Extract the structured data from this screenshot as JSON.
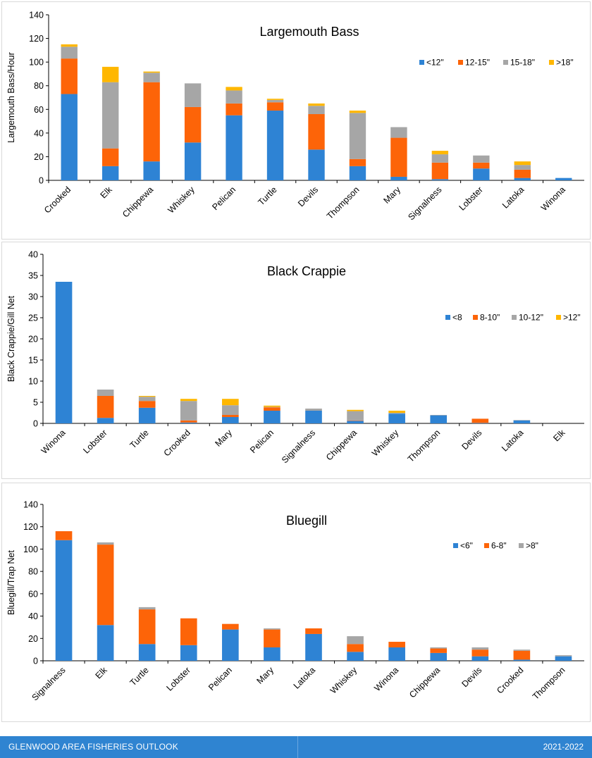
{
  "footer": {
    "left": "GLENWOOD AREA FISHERIES OUTLOOK",
    "right": "2021-2022"
  },
  "chart_data": [
    {
      "type": "bar",
      "stacked": true,
      "title": "Largemouth Bass",
      "xlabel": "",
      "ylabel": "Largemouth Bass/Hour",
      "ylim": [
        0,
        140
      ],
      "yticks": [
        0,
        20,
        40,
        60,
        80,
        100,
        120,
        140
      ],
      "ytick_labels": [
        "0",
        "20",
        "40",
        "60",
        "80",
        "100",
        "120",
        "140"
      ],
      "grid": false,
      "legend": "top-right",
      "categories": [
        "Crooked",
        "Elk",
        "Chippewa",
        "Whiskey",
        "Pelican",
        "Turtle",
        "Devils",
        "Thompson",
        "Mary",
        "Signalness",
        "Lobster",
        "Latoka",
        "Winona"
      ],
      "series": [
        {
          "name": "<12\"",
          "color": "#2e83d4",
          "values": [
            73,
            12,
            16,
            32,
            55,
            59,
            26,
            12,
            3,
            1,
            10,
            2,
            2
          ]
        },
        {
          "name": "12-15\"",
          "color": "#fd6408",
          "values": [
            30,
            15,
            67,
            30,
            10,
            7,
            30,
            6,
            33,
            14,
            5,
            7,
            0
          ]
        },
        {
          "name": "15-18\"",
          "color": "#a6a6a6",
          "values": [
            10,
            56,
            8,
            20,
            11,
            2,
            7,
            39,
            9,
            7,
            6,
            4,
            0
          ]
        },
        {
          "name": ">18\"",
          "color": "#ffb700",
          "values": [
            2,
            13,
            1,
            0,
            3,
            1,
            2,
            2,
            0,
            3,
            0,
            3,
            0
          ]
        }
      ]
    },
    {
      "type": "bar",
      "stacked": true,
      "title": "Black Crappie",
      "xlabel": "",
      "ylabel": "Black Crappie/Gill Net",
      "ylim": [
        0,
        40
      ],
      "yticks": [
        0,
        5,
        10,
        15,
        20,
        25,
        30,
        35,
        40
      ],
      "ytick_labels": [
        "0",
        "5",
        "10",
        "15",
        "20",
        "25",
        "30",
        "35",
        "40"
      ],
      "grid": false,
      "legend": "top-right",
      "categories": [
        "Winona",
        "Lobster",
        "Turtle",
        "Crooked",
        "Mary",
        "Pelican",
        "Signalness",
        "Chippewa",
        "Whiskey",
        "Thompson",
        "Devils",
        "Latoka",
        "Elk"
      ],
      "series": [
        {
          "name": "<8",
          "color": "#2e83d4",
          "values": [
            33.5,
            1.3,
            3.7,
            0.2,
            1.5,
            3.0,
            3.0,
            0.6,
            2.3,
            1.9,
            0.1,
            0.7,
            0
          ]
        },
        {
          "name": "8-10\"",
          "color": "#fd6408",
          "values": [
            0,
            5.2,
            1.6,
            0.5,
            0.5,
            0.8,
            0,
            0.1,
            0,
            0,
            1.0,
            0,
            0
          ]
        },
        {
          "name": "10-12\"",
          "color": "#a6a6a6",
          "values": [
            0,
            1.5,
            1.0,
            4.6,
            2.3,
            0.1,
            0.5,
            2.2,
            0.2,
            0.1,
            0,
            0.1,
            0
          ]
        },
        {
          "name": ">12\"",
          "color": "#ffb700",
          "values": [
            0,
            0,
            0.2,
            0.5,
            1.5,
            0.3,
            0,
            0.3,
            0.5,
            0,
            0,
            0,
            0
          ]
        }
      ]
    },
    {
      "type": "bar",
      "stacked": true,
      "title": "Bluegill",
      "xlabel": "",
      "ylabel": "Bluegill/Trap Net",
      "ylim": [
        0,
        140
      ],
      "yticks": [
        0,
        20,
        40,
        60,
        80,
        100,
        120,
        140
      ],
      "ytick_labels": [
        "0",
        "20",
        "40",
        "60",
        "80",
        "100",
        "120",
        "140"
      ],
      "grid": false,
      "legend": "top-right",
      "categories": [
        "Signalness",
        "Elk",
        "Turtle",
        "Lobster",
        "Pelican",
        "Mary",
        "Latoka",
        "Whiskey",
        "Winona",
        "Chippewa",
        "Devils",
        "Crooked",
        "Thompson"
      ],
      "series": [
        {
          "name": "<6\"",
          "color": "#2e83d4",
          "values": [
            108,
            32,
            15,
            14,
            28,
            12,
            24,
            8,
            12,
            7,
            4,
            1,
            4
          ]
        },
        {
          "name": "6-8\"",
          "color": "#fd6408",
          "values": [
            8,
            72,
            31,
            24,
            5,
            16,
            5,
            7,
            5,
            4,
            6,
            8,
            0
          ]
        },
        {
          "name": ">8\"",
          "color": "#a6a6a6",
          "values": [
            0,
            2,
            2,
            0,
            0,
            1,
            0,
            7,
            0,
            1,
            2,
            1,
            1
          ]
        }
      ]
    }
  ]
}
